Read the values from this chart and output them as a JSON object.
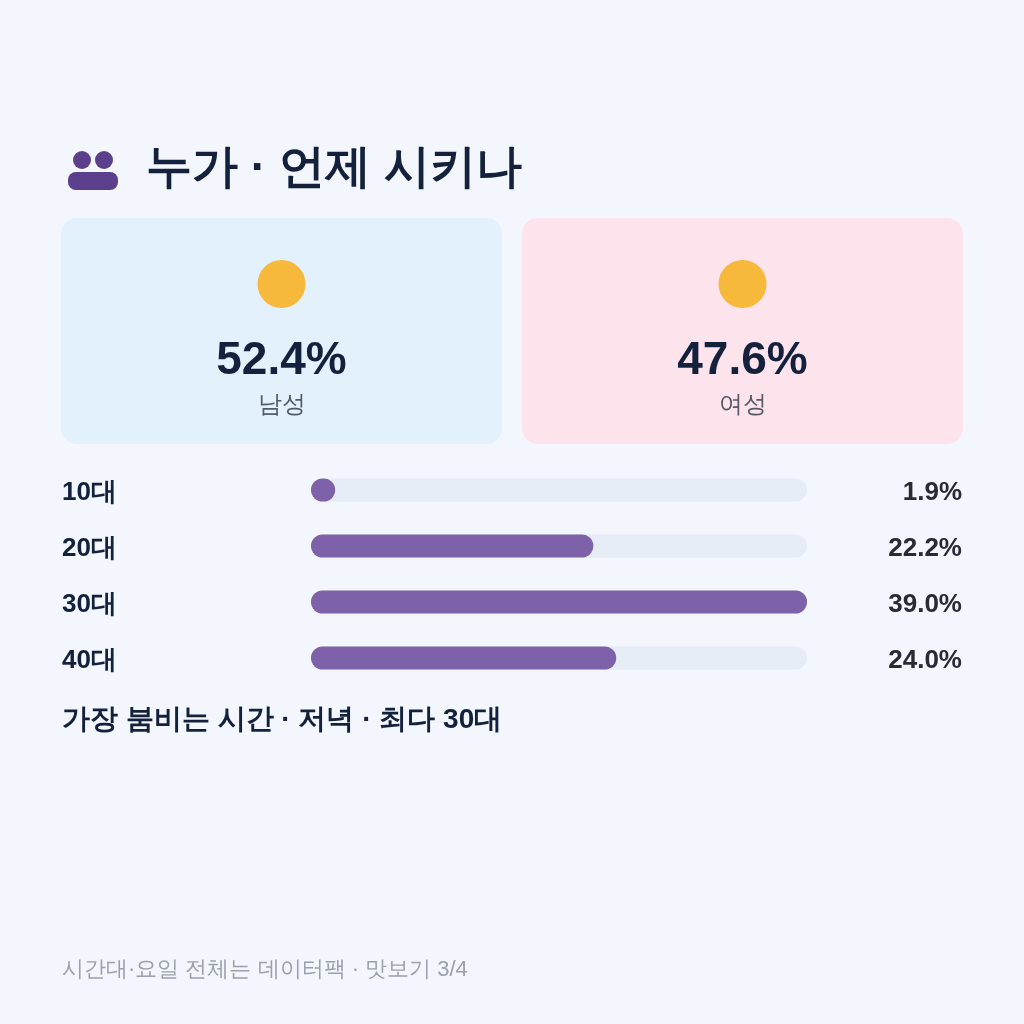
{
  "chart_data": [
    {
      "type": "other",
      "title": "누가 · 언제 시키나",
      "categories": [
        "남성",
        "여성"
      ],
      "value_labels": [
        "52.4%",
        "47.6%"
      ],
      "colors": [
        "#e3f1fc",
        "#fde3ec"
      ]
    },
    {
      "type": "bar",
      "orientation": "horizontal",
      "categories": [
        "10대",
        "20대",
        "30대",
        "40대"
      ],
      "values": [
        1.9,
        22.2,
        39.0,
        24.0
      ],
      "value_labels": [
        "1.9%",
        "22.2%",
        "39.0%",
        "24.0%"
      ],
      "color": "#7d62a9",
      "annotations": [
        "가장 붐비는 시간 · 저녁 · 최다 30대",
        "시간대·요일 전체는 데이터팩 · 맛보기 3/4"
      ]
    }
  ]
}
